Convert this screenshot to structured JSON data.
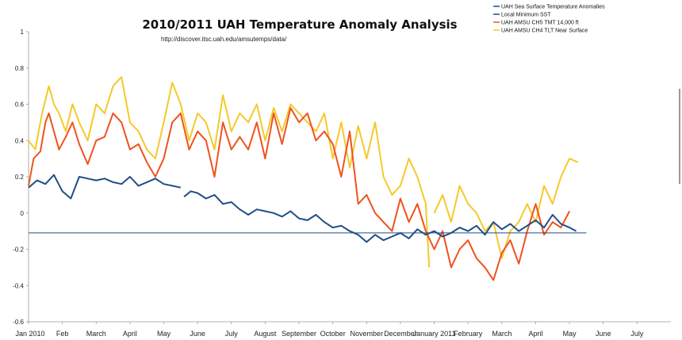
{
  "chart_data": {
    "type": "line",
    "title": "2010/2011 UAH Temperature Anomaly Analysis",
    "subtitle": "http://discover.itsc.uah.edu/amsutemps/data/",
    "xlabel": "",
    "ylabel": "",
    "ylim": [
      -0.6,
      1
    ],
    "yticks": [
      "1",
      "0.8",
      "0.6",
      "0.4",
      "0.2",
      "0",
      "-0.2",
      "-0.4",
      "-0.6"
    ],
    "yticks_values": [
      1,
      0.8,
      0.6,
      0.4,
      0.2,
      0,
      -0.2,
      -0.4,
      -0.6
    ],
    "xrange_months": [
      0,
      19
    ],
    "xticks": [
      "Jan 2010",
      "Feb",
      "March",
      "April",
      "May",
      "June",
      "July",
      "August",
      "September",
      "October",
      "November",
      "December",
      "January 2011",
      "February",
      "March",
      "April",
      "May",
      "June",
      "July"
    ],
    "grid": false,
    "legend_position": "top-right",
    "series": [
      {
        "name": "UAH Sea Surface Temperature Anomalies",
        "color": "#1f4e87",
        "x": [
          0.0,
          0.25,
          0.5,
          0.75,
          1.0,
          1.25,
          1.5,
          1.75,
          2.0,
          2.25,
          2.5,
          2.75,
          3.0,
          3.25,
          3.5,
          3.75,
          4.0,
          4.25,
          4.5,
          null,
          4.6,
          4.8,
          5.0,
          5.25,
          5.5,
          5.75,
          6.0,
          6.25,
          6.5,
          6.75,
          7.0,
          7.25,
          7.5,
          7.75,
          8.0,
          8.25,
          8.5,
          8.75,
          9.0,
          9.25,
          9.5,
          9.75,
          10.0,
          10.25,
          10.5,
          10.75,
          11.0,
          11.25,
          11.5,
          11.75,
          12.0,
          12.25,
          12.5,
          12.75,
          13.0,
          13.25,
          13.5,
          13.75,
          14.0,
          14.25,
          14.5,
          14.75,
          15.0,
          15.25,
          15.5,
          15.75,
          16.0,
          16.2
        ],
        "values": [
          0.14,
          0.18,
          0.16,
          0.21,
          0.12,
          0.08,
          0.2,
          0.19,
          0.18,
          0.19,
          0.17,
          0.16,
          0.2,
          0.15,
          0.17,
          0.19,
          0.16,
          0.15,
          0.14,
          null,
          0.09,
          0.12,
          0.11,
          0.08,
          0.1,
          0.05,
          0.06,
          0.02,
          -0.01,
          0.02,
          0.01,
          0.0,
          -0.02,
          0.01,
          -0.03,
          -0.04,
          -0.01,
          -0.05,
          -0.08,
          -0.07,
          -0.1,
          -0.12,
          -0.16,
          -0.12,
          -0.15,
          -0.13,
          -0.11,
          -0.14,
          -0.09,
          -0.12,
          -0.1,
          -0.13,
          -0.11,
          -0.08,
          -0.1,
          -0.07,
          -0.12,
          -0.05,
          -0.09,
          -0.06,
          -0.1,
          -0.07,
          -0.04,
          -0.08,
          -0.01,
          -0.06,
          -0.08,
          -0.1
        ]
      },
      {
        "name": "Local Minimum SST",
        "color": "#1f4e87",
        "x": [
          0.0,
          16.5
        ],
        "values": [
          -0.11,
          -0.11
        ]
      },
      {
        "name": "UAH AMSU CH5 TMT 14,000 ft",
        "color": "#f0521e",
        "x": [
          0.0,
          0.15,
          0.35,
          0.5,
          0.6,
          0.75,
          0.9,
          1.1,
          1.3,
          1.5,
          1.75,
          2.0,
          2.25,
          2.5,
          2.75,
          3.0,
          3.25,
          3.5,
          3.75,
          4.0,
          4.25,
          4.5,
          4.75,
          5.0,
          5.25,
          5.5,
          5.75,
          6.0,
          6.25,
          6.5,
          6.75,
          7.0,
          7.25,
          7.5,
          7.75,
          8.0,
          8.25,
          8.5,
          8.75,
          9.0,
          9.25,
          9.5,
          9.75,
          10.0,
          10.25,
          10.5,
          10.75,
          11.0,
          11.25,
          11.5,
          11.75,
          12.0,
          12.25,
          12.5,
          12.75,
          13.0,
          13.25,
          13.5,
          13.75,
          14.0,
          14.25,
          14.5,
          14.75,
          15.0,
          15.25,
          15.5,
          15.75,
          16.0
        ],
        "values": [
          0.15,
          0.3,
          0.34,
          0.5,
          0.55,
          0.45,
          0.35,
          0.42,
          0.5,
          0.38,
          0.27,
          0.4,
          0.42,
          0.55,
          0.5,
          0.35,
          0.38,
          0.28,
          0.2,
          0.3,
          0.5,
          0.55,
          0.35,
          0.45,
          0.4,
          0.2,
          0.5,
          0.35,
          0.42,
          0.35,
          0.5,
          0.3,
          0.55,
          0.38,
          0.58,
          0.5,
          0.55,
          0.4,
          0.45,
          0.38,
          0.2,
          0.45,
          0.05,
          0.1,
          0.0,
          -0.05,
          -0.1,
          0.08,
          -0.05,
          0.05,
          -0.1,
          -0.2,
          -0.1,
          -0.3,
          -0.2,
          -0.15,
          -0.25,
          -0.3,
          -0.37,
          -0.22,
          -0.15,
          -0.28,
          -0.1,
          0.05,
          -0.12,
          -0.05,
          -0.08,
          0.01
        ]
      },
      {
        "name": "UAH AMSU CH4 TLT Near Surface",
        "color": "#f5c92a",
        "x": [
          0.0,
          0.2,
          0.4,
          0.6,
          0.75,
          0.9,
          1.1,
          1.3,
          1.5,
          1.75,
          2.0,
          2.25,
          2.5,
          2.75,
          3.0,
          3.25,
          3.5,
          3.75,
          4.0,
          4.25,
          4.5,
          4.75,
          5.0,
          5.25,
          5.5,
          5.75,
          6.0,
          6.25,
          6.5,
          6.75,
          7.0,
          7.25,
          7.5,
          7.75,
          8.0,
          8.25,
          8.5,
          8.75,
          9.0,
          9.25,
          9.5,
          9.75,
          10.0,
          10.25,
          10.5,
          10.75,
          11.0,
          11.25,
          11.5,
          11.75,
          11.85,
          null,
          12.0,
          12.25,
          12.5,
          12.75,
          13.0,
          13.25,
          13.5,
          13.75,
          14.0,
          14.25,
          14.5,
          14.75,
          15.0,
          15.25,
          15.5,
          15.75,
          16.0,
          16.25
        ],
        "values": [
          0.4,
          0.35,
          0.55,
          0.7,
          0.6,
          0.55,
          0.45,
          0.6,
          0.5,
          0.4,
          0.6,
          0.55,
          0.7,
          0.75,
          0.5,
          0.45,
          0.35,
          0.3,
          0.5,
          0.72,
          0.6,
          0.4,
          0.55,
          0.5,
          0.35,
          0.65,
          0.45,
          0.55,
          0.5,
          0.6,
          0.4,
          0.58,
          0.45,
          0.6,
          0.55,
          0.5,
          0.45,
          0.55,
          0.3,
          0.5,
          0.25,
          0.48,
          0.3,
          0.5,
          0.2,
          0.1,
          0.15,
          0.3,
          0.2,
          0.05,
          -0.3,
          null,
          0.0,
          0.1,
          -0.05,
          0.15,
          0.05,
          0.0,
          -0.1,
          -0.05,
          -0.25,
          -0.1,
          -0.05,
          0.05,
          -0.05,
          0.15,
          0.05,
          0.2,
          0.3,
          0.28
        ]
      }
    ]
  }
}
